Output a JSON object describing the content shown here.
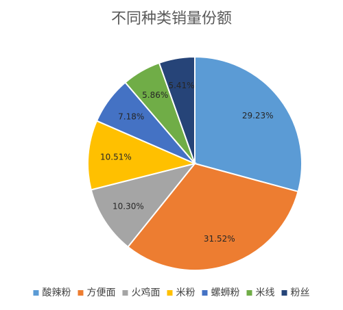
{
  "chart_data": {
    "type": "pie",
    "title": "不同种类销量份额",
    "categories": [
      "酸辣粉",
      "方便面",
      "火鸡面",
      "米粉",
      "螺蛳粉",
      "米线",
      "粉丝"
    ],
    "values": [
      29.23,
      31.52,
      10.3,
      10.51,
      7.18,
      5.86,
      5.41
    ],
    "value_labels": [
      "29.23%",
      "31.52%",
      "10.30%",
      "10.51%",
      "7.18%",
      "5.86%",
      "5.41%"
    ],
    "colors": [
      "#5b9bd5",
      "#ed7d31",
      "#a5a5a5",
      "#ffc000",
      "#4472c4",
      "#70ad47",
      "#264478"
    ],
    "legend_position": "bottom"
  }
}
